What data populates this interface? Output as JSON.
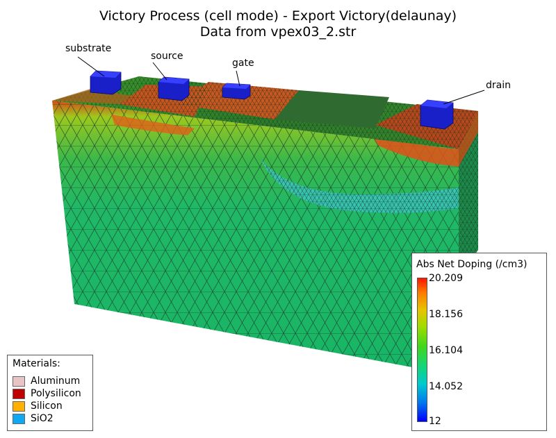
{
  "title": {
    "line1": "Victory Process  (cell mode) - Export Victory(delaunay)",
    "line2": "Data from vpex03_2.str"
  },
  "electrodes": {
    "substrate": "substrate",
    "source": "source",
    "gate": "gate",
    "drain": "drain"
  },
  "materials_legend": {
    "title": "Materials:",
    "items": [
      {
        "name": "Aluminum",
        "color": "#e8c4c4"
      },
      {
        "name": "Polysilicon",
        "color": "#c00000"
      },
      {
        "name": "Silicon",
        "color": "#ffb000"
      },
      {
        "name": "SiO2",
        "color": "#10a8f0"
      }
    ]
  },
  "doping_legend": {
    "title": "Abs Net Doping (/cm3)",
    "ticks": [
      "20.209",
      "18.156",
      "16.104",
      "14.052",
      "12"
    ],
    "colors": {
      "max": "#ff1500",
      "mid": "#3fd61e",
      "min": "#0000ff"
    }
  }
}
